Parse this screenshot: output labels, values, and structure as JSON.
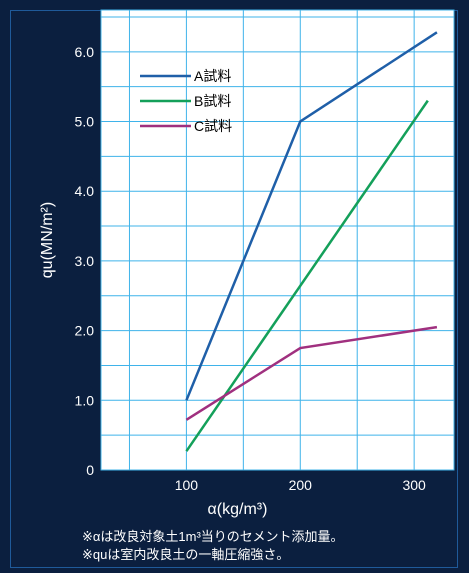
{
  "chart_data": {
    "type": "line",
    "xlabel": "α(kg/m³)",
    "ylabel": "qu(MN/m²)",
    "xlim": [
      25,
      335
    ],
    "ylim": [
      0,
      6.6
    ],
    "x_ticks": [
      100,
      200,
      300
    ],
    "x_tick_labels": [
      "100",
      "200",
      "300"
    ],
    "y_ticks": [
      0,
      1,
      2,
      3,
      4,
      5,
      6
    ],
    "y_tick_labels": [
      "0",
      "1.0",
      "2.0",
      "3.0",
      "4.0",
      "5.0",
      "6.0"
    ],
    "grid": true,
    "legend_position": "top-left",
    "series": [
      {
        "name": "A試料",
        "color": "#1f5fa8",
        "x": [
          100,
          200,
          320
        ],
        "y": [
          1.0,
          5.0,
          6.28
        ]
      },
      {
        "name": "B試料",
        "color": "#14a05a",
        "x": [
          100,
          312
        ],
        "y": [
          0.27,
          5.3
        ]
      },
      {
        "name": "C試料",
        "color": "#a0307f",
        "x": [
          100,
          200,
          320
        ],
        "y": [
          0.72,
          1.75,
          2.05
        ]
      }
    ],
    "notes": [
      "※αは改良対象土1m³当りのセメント添加量。",
      "※quは室内改良土の一軸圧縮強さ。"
    ]
  }
}
